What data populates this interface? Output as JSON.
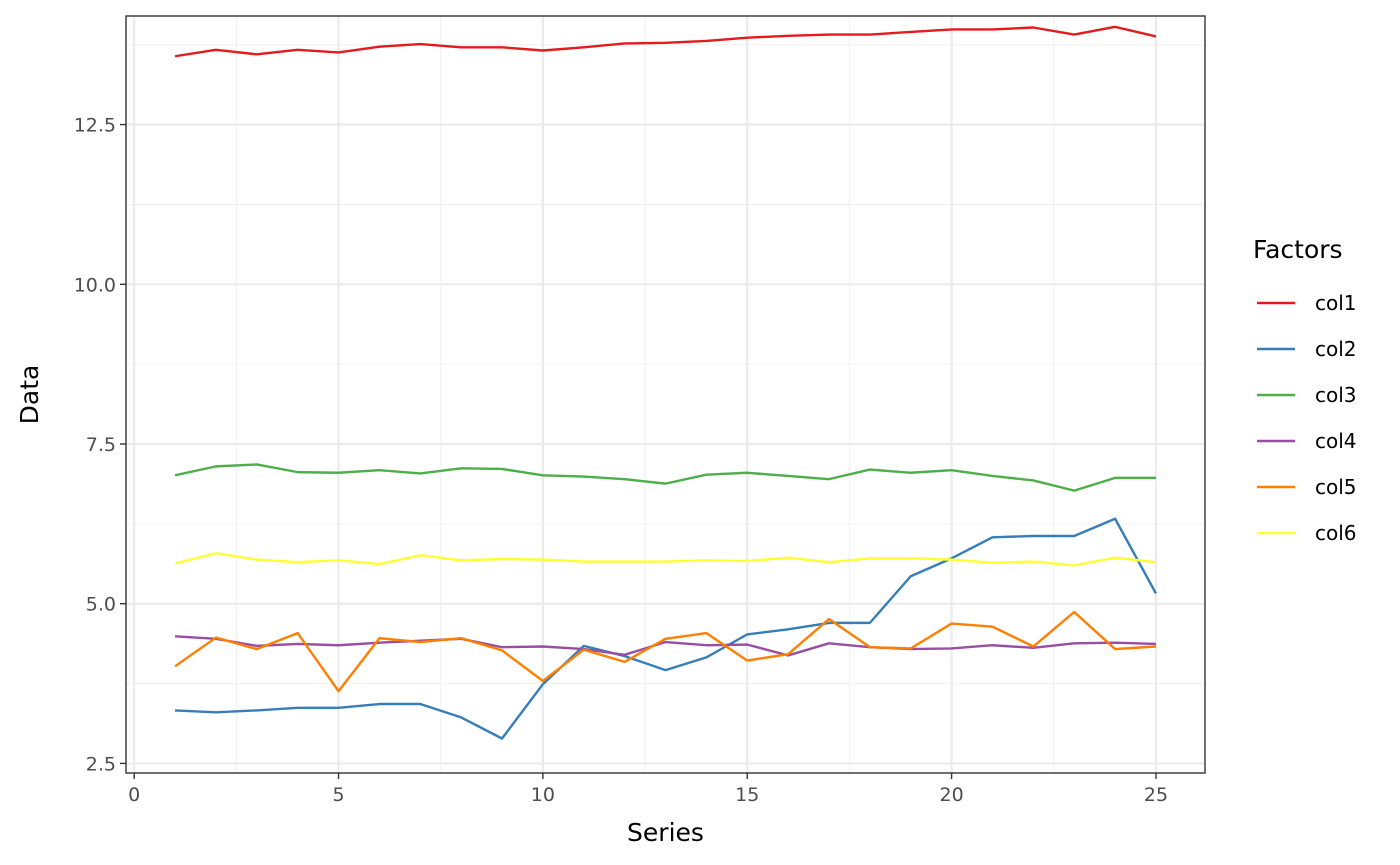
{
  "chart_data": {
    "type": "line",
    "title": "",
    "xlabel": "Series",
    "ylabel": "Data",
    "xlim": [
      -0.2,
      26.2
    ],
    "ylim": [
      2.35,
      14.2
    ],
    "x_ticks": [
      0,
      5,
      10,
      15,
      20,
      25
    ],
    "x_tick_labels": [
      "0",
      "5",
      "10",
      "15",
      "20",
      "25"
    ],
    "y_ticks": [
      2.5,
      5.0,
      7.5,
      10.0,
      12.5
    ],
    "y_tick_labels": [
      "2.5",
      "5.0",
      "7.5",
      "10.0",
      "12.5"
    ],
    "grid": true,
    "legend_position": "right",
    "legend_title": "Factors",
    "x": [
      1,
      2,
      3,
      4,
      5,
      6,
      7,
      8,
      9,
      10,
      11,
      12,
      13,
      14,
      15,
      16,
      17,
      18,
      19,
      20,
      21,
      22,
      23,
      24,
      25
    ],
    "series": [
      {
        "name": "col1",
        "color": "#E41A1C",
        "values": [
          13.57,
          13.67,
          13.6,
          13.67,
          13.63,
          13.72,
          13.76,
          13.71,
          13.71,
          13.66,
          13.71,
          13.77,
          13.78,
          13.81,
          13.86,
          13.89,
          13.91,
          13.91,
          13.95,
          13.99,
          13.99,
          14.02,
          13.91,
          14.03,
          13.88
        ]
      },
      {
        "name": "col2",
        "color": "#377EB8",
        "values": [
          3.33,
          3.3,
          3.33,
          3.37,
          3.37,
          3.43,
          3.43,
          3.22,
          2.89,
          3.74,
          4.34,
          4.18,
          3.96,
          4.16,
          4.52,
          4.6,
          4.7,
          4.7,
          5.43,
          5.71,
          6.04,
          6.06,
          6.06,
          6.33,
          5.16
        ]
      },
      {
        "name": "col3",
        "color": "#4DAF4A",
        "values": [
          7.01,
          7.15,
          7.18,
          7.06,
          7.05,
          7.09,
          7.04,
          7.12,
          7.11,
          7.01,
          6.99,
          6.95,
          6.88,
          7.02,
          7.05,
          7.0,
          6.95,
          7.1,
          7.05,
          7.09,
          7.0,
          6.93,
          6.77,
          6.97,
          6.97
        ]
      },
      {
        "name": "col4",
        "color": "#984EA3",
        "values": [
          4.49,
          4.45,
          4.34,
          4.37,
          4.35,
          4.39,
          4.42,
          4.45,
          4.32,
          4.33,
          4.29,
          4.2,
          4.4,
          4.35,
          4.36,
          4.19,
          4.38,
          4.32,
          4.29,
          4.3,
          4.35,
          4.31,
          4.38,
          4.39,
          4.37
        ]
      },
      {
        "name": "col5",
        "color": "#FF7F00",
        "values": [
          4.02,
          4.47,
          4.29,
          4.54,
          3.63,
          4.46,
          4.4,
          4.46,
          4.27,
          3.79,
          4.28,
          4.09,
          4.45,
          4.54,
          4.11,
          4.21,
          4.76,
          4.32,
          4.3,
          4.69,
          4.64,
          4.33,
          4.87,
          4.29,
          4.33
        ]
      },
      {
        "name": "col6",
        "color": "#FFFF33",
        "values": [
          5.63,
          5.79,
          5.69,
          5.65,
          5.68,
          5.62,
          5.76,
          5.68,
          5.7,
          5.69,
          5.66,
          5.66,
          5.66,
          5.68,
          5.67,
          5.72,
          5.65,
          5.71,
          5.71,
          5.69,
          5.64,
          5.66,
          5.6,
          5.72,
          5.65
        ]
      }
    ]
  }
}
